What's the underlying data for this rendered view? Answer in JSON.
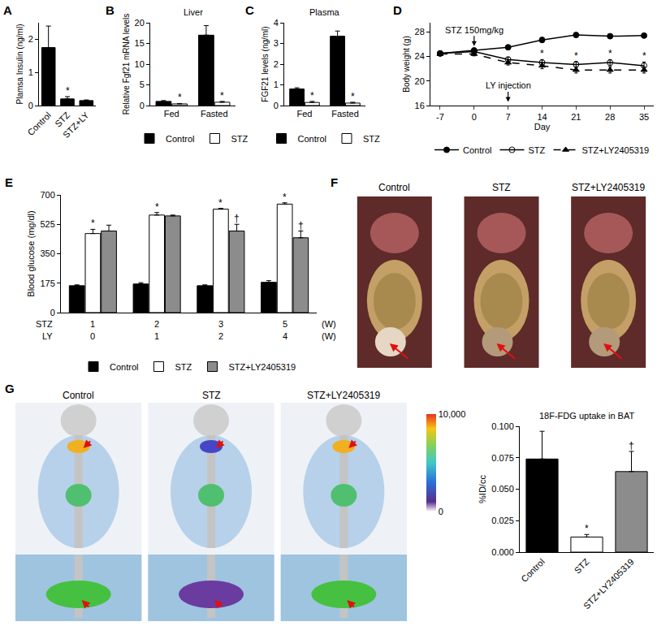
{
  "chart_data": [
    {
      "letter": "A",
      "type": "bar",
      "categories": [
        "Control",
        "STZ",
        "STZ+LY"
      ],
      "values": [
        1.75,
        0.2,
        0.15
      ],
      "errors": [
        0.65,
        0.07,
        0.02
      ],
      "color": "#000000",
      "significance": [
        null,
        "*",
        null
      ],
      "y_label": "Plamsa Insulin (ng/ml)",
      "ylim": [
        0,
        2.5
      ],
      "yticks": [
        0,
        1,
        2
      ],
      "grid": false
    },
    {
      "letter": "B",
      "type": "bar",
      "title": "Liver",
      "categories": [
        "Fed",
        "Fasted"
      ],
      "series": [
        {
          "name": "Control",
          "color": "#000000",
          "values": [
            1.0,
            17.0
          ],
          "errors": [
            0.2,
            2.3
          ]
        },
        {
          "name": "STZ",
          "color": "#ffffff",
          "values": [
            0.4,
            0.8
          ],
          "errors": [
            0.1,
            0.2
          ],
          "significance": [
            "*",
            "*"
          ]
        }
      ],
      "y_label": "Relative Fgf21 mRNA levels",
      "ylim": [
        0,
        20
      ],
      "yticks": [
        0,
        5,
        10,
        15,
        20
      ],
      "grid": false,
      "legend": "bottom"
    },
    {
      "letter": "C",
      "type": "bar",
      "title": "Plasma",
      "categories": [
        "Fed",
        "Fasted"
      ],
      "series": [
        {
          "name": "Control",
          "color": "#000000",
          "values": [
            0.8,
            3.35
          ],
          "errors": [
            0.06,
            0.25
          ]
        },
        {
          "name": "STZ",
          "color": "#ffffff",
          "values": [
            0.15,
            0.12
          ],
          "errors": [
            0.05,
            0.04
          ],
          "significance": [
            "*",
            "*"
          ]
        }
      ],
      "y_label": "FGF21 levels (ng/ml)",
      "ylim": [
        0,
        4
      ],
      "yticks": [
        0,
        1,
        2,
        3,
        4
      ],
      "grid": false,
      "legend": "bottom"
    },
    {
      "letter": "D",
      "type": "line",
      "x": [
        -7,
        0,
        7,
        14,
        21,
        28,
        35
      ],
      "series": [
        {
          "name": "Control",
          "color": "#000000",
          "marker": "circle",
          "line_style": "solid",
          "values": [
            24.5,
            25.0,
            25.5,
            26.7,
            27.5,
            27.3,
            27.4
          ],
          "errors": [
            0.3,
            0.3,
            0.3,
            0.4,
            0.3,
            0.3,
            0.3
          ]
        },
        {
          "name": "STZ",
          "color": "#000000",
          "marker": "circle-open",
          "line_style": "solid",
          "values": [
            24.5,
            24.8,
            23.5,
            23.0,
            22.7,
            23.0,
            22.5
          ],
          "errors": [
            0.3,
            0.3,
            0.4,
            0.5,
            0.5,
            0.5,
            0.6
          ],
          "significance": [
            null,
            null,
            null,
            "*",
            "*",
            "*",
            "*"
          ]
        },
        {
          "name": "STZ+LY2405319",
          "color": "#000000",
          "marker": "triangle-up",
          "line_style": "dashed",
          "values": [
            24.4,
            24.4,
            23.0,
            22.5,
            21.8,
            21.8,
            21.8
          ],
          "errors": [
            0.3,
            0.3,
            0.4,
            0.5,
            0.5,
            0.5,
            0.5
          ]
        }
      ],
      "annotations": [
        {
          "text": "STZ 150mg/kg",
          "x": 0,
          "y": 25.7
        },
        {
          "text": "LY injection",
          "x": 7,
          "y": 16.6
        }
      ],
      "x_label": "Day",
      "xlim": [
        -9,
        37
      ],
      "xticks": [
        -7,
        0,
        7,
        14,
        21,
        28,
        35
      ],
      "y_label": "Body weight (g)",
      "ylim": [
        16,
        29.5
      ],
      "yticks": [
        16,
        20,
        24,
        28
      ],
      "grid": false,
      "legend": "bottom"
    },
    {
      "letter": "E",
      "type": "bar",
      "x_rows": [
        {
          "label": "STZ",
          "values": [
            "1",
            "2",
            "3",
            "5"
          ],
          "unit": "(W)"
        },
        {
          "label": "LY",
          "values": [
            "0",
            "1",
            "2",
            "4"
          ],
          "unit": "(W)"
        }
      ],
      "series": [
        {
          "name": "Control",
          "color": "#000000",
          "values": [
            160,
            170,
            160,
            180
          ],
          "errors": [
            5,
            8,
            5,
            10
          ]
        },
        {
          "name": "STZ",
          "color": "#ffffff",
          "values": [
            470,
            580,
            615,
            645
          ],
          "errors": [
            25,
            15,
            5,
            8
          ],
          "significance": [
            "*",
            "*",
            "*",
            "*"
          ]
        },
        {
          "name": "STZ+LY2405319",
          "color": "#8c8c8c",
          "values": [
            485,
            575,
            485,
            445
          ],
          "errors": [
            35,
            5,
            40,
            40
          ],
          "significance": [
            null,
            null,
            "†",
            "†"
          ]
        }
      ],
      "y_label": "Blood glucose (mg/dl)",
      "ylim": [
        0,
        700
      ],
      "yticks": [
        0,
        175,
        350,
        525,
        700
      ],
      "grid": false,
      "legend": "bottom"
    },
    {
      "letter": "F",
      "type": "image",
      "panels": [
        "Control",
        "STZ",
        "STZ+LY2405319"
      ]
    },
    {
      "letter": "G",
      "type": "image",
      "panels": [
        "Control",
        "STZ",
        "STZ+LY2405319"
      ],
      "colorbar": {
        "range": [
          0,
          10000
        ],
        "ticks": [
          0,
          {
            "value": 10000,
            "label": "10,000"
          }
        ]
      }
    },
    {
      "type": "bar",
      "title": "18F-FDG uptake in BAT",
      "categories": [
        "Control",
        "STZ",
        "STZ+LY2405319"
      ],
      "values": [
        0.074,
        0.012,
        0.064
      ],
      "errors": [
        0.022,
        0.002,
        0.016
      ],
      "colors": [
        "#000000",
        "#ffffff",
        "#8c8c8c"
      ],
      "significance": [
        null,
        "*",
        "†"
      ],
      "y_label": "%ID/cc",
      "ylim": [
        0,
        0.1
      ],
      "yticks": [
        {
          "value": 0,
          "label": "0.000"
        },
        {
          "value": 0.025,
          "label": "0.025"
        },
        {
          "value": 0.05,
          "label": "0.050"
        },
        {
          "value": 0.075,
          "label": "0.075"
        },
        {
          "value": 0.1,
          "label": "0.100"
        }
      ],
      "grid": false
    }
  ]
}
